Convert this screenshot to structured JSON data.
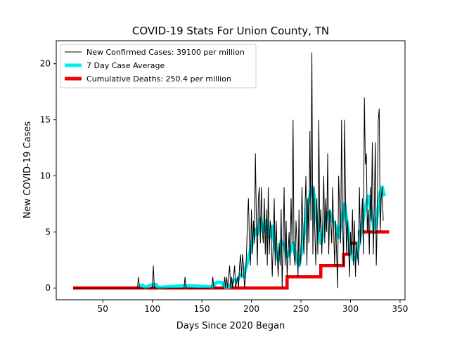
{
  "chart_data": {
    "type": "line",
    "title": "COVID-19 Stats For Union County, TN",
    "xlabel": "Days Since 2020 Began",
    "ylabel": "New COVID-19 Cases",
    "xlim": [
      3,
      355
    ],
    "ylim": [
      -1.05,
      22.05
    ],
    "xticks": [
      50,
      100,
      150,
      200,
      250,
      300,
      350
    ],
    "yticks": [
      0,
      5,
      10,
      15,
      20
    ],
    "grid": false,
    "legend_position": "top-left",
    "series": [
      {
        "name": "New Confirmed Cases: 39100 per million",
        "color": "#000000",
        "points": [
          [
            20,
            0
          ],
          [
            85,
            0
          ],
          [
            86,
            1
          ],
          [
            87,
            0
          ],
          [
            100,
            0
          ],
          [
            101,
            2
          ],
          [
            102,
            0
          ],
          [
            132,
            0
          ],
          [
            133,
            1
          ],
          [
            134,
            0
          ],
          [
            160,
            0
          ],
          [
            161,
            1
          ],
          [
            162,
            0
          ],
          [
            172,
            0
          ],
          [
            173,
            1
          ],
          [
            174,
            0
          ],
          [
            175,
            1
          ],
          [
            176,
            0
          ],
          [
            178,
            2
          ],
          [
            179,
            0
          ],
          [
            180,
            1
          ],
          [
            181,
            0
          ],
          [
            183,
            2
          ],
          [
            184,
            0
          ],
          [
            186,
            1
          ],
          [
            187,
            0
          ],
          [
            188,
            2
          ],
          [
            189,
            3
          ],
          [
            190,
            1
          ],
          [
            191,
            3
          ],
          [
            192,
            2
          ],
          [
            193,
            0
          ],
          [
            194,
            1
          ],
          [
            195,
            3
          ],
          [
            196,
            6
          ],
          [
            197,
            8
          ],
          [
            198,
            4
          ],
          [
            199,
            2
          ],
          [
            200,
            7
          ],
          [
            201,
            3
          ],
          [
            202,
            6
          ],
          [
            203,
            4
          ],
          [
            204,
            12
          ],
          [
            205,
            6
          ],
          [
            206,
            2
          ],
          [
            207,
            8
          ],
          [
            208,
            9
          ],
          [
            209,
            4
          ],
          [
            210,
            9
          ],
          [
            211,
            5
          ],
          [
            212,
            4
          ],
          [
            213,
            8
          ],
          [
            214,
            3
          ],
          [
            215,
            7
          ],
          [
            216,
            2
          ],
          [
            217,
            9
          ],
          [
            218,
            3
          ],
          [
            219,
            6
          ],
          [
            220,
            5
          ],
          [
            221,
            1
          ],
          [
            222,
            4
          ],
          [
            223,
            8
          ],
          [
            224,
            2
          ],
          [
            225,
            6
          ],
          [
            226,
            3
          ],
          [
            227,
            1
          ],
          [
            228,
            4
          ],
          [
            229,
            2
          ],
          [
            230,
            7
          ],
          [
            231,
            0
          ],
          [
            232,
            4
          ],
          [
            233,
            9
          ],
          [
            234,
            2
          ],
          [
            235,
            6
          ],
          [
            236,
            1
          ],
          [
            237,
            3
          ],
          [
            238,
            5
          ],
          [
            239,
            2
          ],
          [
            240,
            8
          ],
          [
            241,
            4
          ],
          [
            242,
            15
          ],
          [
            243,
            3
          ],
          [
            244,
            2
          ],
          [
            245,
            6
          ],
          [
            246,
            4
          ],
          [
            247,
            1
          ],
          [
            248,
            7
          ],
          [
            249,
            2
          ],
          [
            250,
            3
          ],
          [
            251,
            9
          ],
          [
            252,
            5
          ],
          [
            253,
            3
          ],
          [
            254,
            7
          ],
          [
            255,
            10
          ],
          [
            256,
            2
          ],
          [
            257,
            8
          ],
          [
            258,
            4
          ],
          [
            259,
            14
          ],
          [
            260,
            6
          ],
          [
            261,
            21
          ],
          [
            262,
            3
          ],
          [
            263,
            9
          ],
          [
            264,
            5
          ],
          [
            265,
            2
          ],
          [
            266,
            8
          ],
          [
            267,
            3
          ],
          [
            268,
            15
          ],
          [
            269,
            5
          ],
          [
            270,
            7
          ],
          [
            271,
            3
          ],
          [
            272,
            6
          ],
          [
            273,
            10
          ],
          [
            274,
            4
          ],
          [
            275,
            8
          ],
          [
            276,
            5
          ],
          [
            277,
            12
          ],
          [
            278,
            3
          ],
          [
            279,
            7
          ],
          [
            280,
            6
          ],
          [
            281,
            4
          ],
          [
            282,
            9
          ],
          [
            283,
            5
          ],
          [
            284,
            2
          ],
          [
            285,
            6
          ],
          [
            286,
            3
          ],
          [
            287,
            0
          ],
          [
            288,
            10
          ],
          [
            289,
            7
          ],
          [
            290,
            4
          ],
          [
            291,
            15
          ],
          [
            292,
            6
          ],
          [
            293,
            2
          ],
          [
            294,
            15
          ],
          [
            295,
            8
          ],
          [
            296,
            3
          ],
          [
            297,
            6
          ],
          [
            298,
            4
          ],
          [
            299,
            1
          ],
          [
            300,
            5
          ],
          [
            301,
            3
          ],
          [
            302,
            7
          ],
          [
            303,
            2
          ],
          [
            304,
            6
          ],
          [
            305,
            1
          ],
          [
            306,
            4
          ],
          [
            307,
            3
          ],
          [
            308,
            2
          ],
          [
            309,
            9
          ],
          [
            310,
            4
          ],
          [
            311,
            6
          ],
          [
            312,
            8
          ],
          [
            313,
            3
          ],
          [
            314,
            17
          ],
          [
            315,
            11
          ],
          [
            316,
            12
          ],
          [
            317,
            5
          ],
          [
            318,
            7
          ],
          [
            319,
            3
          ],
          [
            320,
            9
          ],
          [
            321,
            6
          ],
          [
            322,
            13
          ],
          [
            323,
            3
          ],
          [
            324,
            7
          ],
          [
            325,
            13
          ],
          [
            326,
            2
          ],
          [
            327,
            6
          ],
          [
            328,
            15
          ],
          [
            329,
            16
          ],
          [
            330,
            5
          ],
          [
            331,
            8
          ],
          [
            332,
            9
          ],
          [
            333,
            6
          ]
        ]
      },
      {
        "name": "7 Day Case Average",
        "color": "#00eeee",
        "points": [
          [
            87,
            0.2
          ],
          [
            90,
            0.25
          ],
          [
            93,
            0.05
          ],
          [
            100,
            0.3
          ],
          [
            104,
            0.3
          ],
          [
            106,
            0.05
          ],
          [
            133,
            0.2
          ],
          [
            138,
            0.2
          ],
          [
            160,
            0.1
          ],
          [
            165,
            0.5
          ],
          [
            170,
            0.5
          ],
          [
            173,
            0.1
          ],
          [
            178,
            0.1
          ],
          [
            182,
            0.7
          ],
          [
            186,
            0.7
          ],
          [
            189,
            1.2
          ],
          [
            192,
            1.0
          ],
          [
            195,
            2.0
          ],
          [
            198,
            3.0
          ],
          [
            201,
            4.0
          ],
          [
            204,
            5.2
          ],
          [
            206,
            4.8
          ],
          [
            209,
            6.2
          ],
          [
            212,
            5.0
          ],
          [
            215,
            6.0
          ],
          [
            218,
            4.5
          ],
          [
            221,
            5.5
          ],
          [
            224,
            3.5
          ],
          [
            227,
            2.5
          ],
          [
            230,
            4.2
          ],
          [
            233,
            3.8
          ],
          [
            236,
            2.8
          ],
          [
            239,
            3.2
          ],
          [
            242,
            4.0
          ],
          [
            245,
            2.7
          ],
          [
            248,
            2.0
          ],
          [
            251,
            3.5
          ],
          [
            254,
            5.5
          ],
          [
            257,
            7.5
          ],
          [
            260,
            8.5
          ],
          [
            262,
            9.0
          ],
          [
            264,
            7.5
          ],
          [
            267,
            5.5
          ],
          [
            270,
            4.0
          ],
          [
            273,
            5.0
          ],
          [
            276,
            6.5
          ],
          [
            279,
            6.8
          ],
          [
            282,
            6.0
          ],
          [
            285,
            5.5
          ],
          [
            288,
            4.5
          ],
          [
            291,
            6.0
          ],
          [
            294,
            7.5
          ],
          [
            297,
            5.5
          ],
          [
            300,
            3.5
          ],
          [
            303,
            2.5
          ],
          [
            306,
            2.8
          ],
          [
            309,
            4.2
          ],
          [
            312,
            5.8
          ],
          [
            315,
            7.2
          ],
          [
            318,
            8.2
          ],
          [
            321,
            6.8
          ],
          [
            324,
            5.2
          ],
          [
            327,
            6.5
          ],
          [
            330,
            8.5
          ],
          [
            332,
            9.0
          ],
          [
            334,
            8.2
          ]
        ]
      },
      {
        "name": "Cumulative Deaths: 250.4 per million",
        "color": "#ee0000",
        "steps": [
          [
            20,
            0
          ],
          [
            236,
            0
          ],
          [
            236,
            1
          ],
          [
            270,
            1
          ],
          [
            270,
            2
          ],
          [
            293,
            2
          ],
          [
            293,
            3
          ],
          [
            299,
            3
          ],
          [
            299,
            4
          ],
          [
            309,
            4
          ],
          [
            309,
            5
          ],
          [
            339,
            5
          ]
        ]
      }
    ]
  }
}
